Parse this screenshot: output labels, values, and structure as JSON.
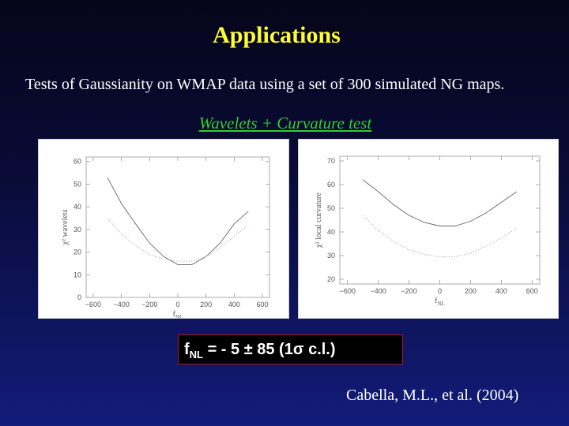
{
  "slide": {
    "title": "Applications",
    "subtitle": "Tests of Gaussianity on WMAP data using a set of 300 simulated NG maps.",
    "section_heading": "Wavelets + Curvature test",
    "result": {
      "prefix": "f",
      "prefix_sub": "NL",
      "middle": " = - 5 ± 85 (1",
      "sigma": "σ",
      "suffix": " c.l.)"
    },
    "citation": "Cabella, M.L., et al. (2004)"
  },
  "chart_data": [
    {
      "type": "line",
      "xlabel": "f",
      "xlabel_sub": "NL",
      "ylabel": "χ² wavelets",
      "xlim": [
        -650,
        650
      ],
      "ylim": [
        0,
        62
      ],
      "xticks": [
        -600,
        -400,
        -200,
        0,
        200,
        400,
        600
      ],
      "xtick_labels": [
        "−600",
        "−400",
        "−200",
        "0",
        "200",
        "400",
        "600"
      ],
      "yticks": [
        0,
        10,
        20,
        30,
        40,
        50,
        60
      ],
      "ytick_labels": [
        "0",
        "10",
        "20",
        "30",
        "40",
        "50",
        "60"
      ],
      "series": [
        {
          "style": "solid",
          "x": [
            -500,
            -400,
            -300,
            -200,
            -100,
            0,
            100,
            200,
            300,
            400,
            500
          ],
          "y": [
            53,
            41.5,
            32.5,
            24,
            18,
            14.5,
            14.5,
            18,
            24,
            32.5,
            38
          ]
        },
        {
          "style": "dotted",
          "x": [
            -500,
            -400,
            -300,
            -200,
            -100,
            0,
            100,
            200,
            300,
            400,
            500
          ],
          "y": [
            35,
            28,
            23,
            19,
            17,
            16,
            16,
            18,
            22,
            27,
            32
          ]
        }
      ]
    },
    {
      "type": "line",
      "xlabel": "f",
      "xlabel_sub": "NL",
      "ylabel": "χ² local curvature",
      "xlim": [
        -650,
        650
      ],
      "ylim": [
        18,
        72
      ],
      "xticks": [
        -600,
        -400,
        -200,
        0,
        200,
        400,
        600
      ],
      "xtick_labels": [
        "−600",
        "−400",
        "−200",
        "0",
        "200",
        "400",
        "600"
      ],
      "yticks": [
        20,
        30,
        40,
        50,
        60,
        70
      ],
      "ytick_labels": [
        "20",
        "30",
        "40",
        "50",
        "60",
        "70"
      ],
      "series": [
        {
          "style": "solid",
          "x": [
            -500,
            -400,
            -300,
            -200,
            -100,
            0,
            100,
            200,
            300,
            400,
            500
          ],
          "y": [
            62,
            57,
            51.5,
            47,
            44,
            42.5,
            42.5,
            44.5,
            48,
            52.5,
            57
          ]
        },
        {
          "style": "dotted",
          "x": [
            -500,
            -400,
            -300,
            -200,
            -100,
            0,
            100,
            200,
            300,
            400,
            500
          ],
          "y": [
            47,
            40.5,
            36,
            32.5,
            30.5,
            29.5,
            29.5,
            31,
            34,
            37.5,
            41.5
          ]
        }
      ]
    }
  ]
}
